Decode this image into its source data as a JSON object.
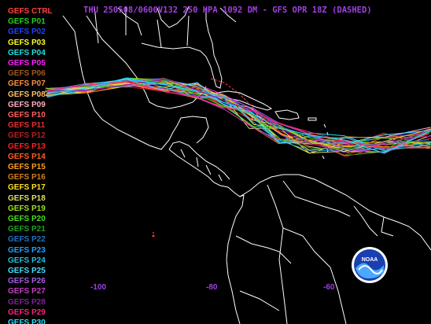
{
  "title": "THU 250508/0600V132  250 HPA 1092 DM - GFS OPR 18Z (DASHED)",
  "title_color": "#a040e0",
  "legend": [
    {
      "label": "GEFS CTRL",
      "color": "#ff4040"
    },
    {
      "label": "GEFS P01",
      "color": "#20d020"
    },
    {
      "label": "GEFS P02",
      "color": "#2040ff"
    },
    {
      "label": "GEFS P03",
      "color": "#ffff20"
    },
    {
      "label": "GEFS P04",
      "color": "#20e0e0"
    },
    {
      "label": "GEFS P05",
      "color": "#ff20ff"
    },
    {
      "label": "GEFS P06",
      "color": "#a05a20"
    },
    {
      "label": "GEFS P07",
      "color": "#ff9040"
    },
    {
      "label": "GEFS P08",
      "color": "#ffc060"
    },
    {
      "label": "GEFS P09",
      "color": "#ffb0c0"
    },
    {
      "label": "GEFS P10",
      "color": "#ff6060"
    },
    {
      "label": "GEFS P11",
      "color": "#e03030"
    },
    {
      "label": "GEFS P12",
      "color": "#b02020"
    },
    {
      "label": "GEFS P13",
      "color": "#ff2020"
    },
    {
      "label": "GEFS P14",
      "color": "#ff6020"
    },
    {
      "label": "GEFS P15",
      "color": "#ffa020"
    },
    {
      "label": "GEFS P16",
      "color": "#d08020"
    },
    {
      "label": "GEFS P17",
      "color": "#ffe020"
    },
    {
      "label": "GEFS P18",
      "color": "#e0e060"
    },
    {
      "label": "GEFS P19",
      "color": "#a0e020"
    },
    {
      "label": "GEFS P20",
      "color": "#40e020"
    },
    {
      "label": "GEFS P21",
      "color": "#20a020"
    },
    {
      "label": "GEFS P22",
      "color": "#2070c0"
    },
    {
      "label": "GEFS P23",
      "color": "#20a0ff"
    },
    {
      "label": "GEFS P24",
      "color": "#20c0e0"
    },
    {
      "label": "GEFS P25",
      "color": "#40e0ff"
    },
    {
      "label": "GEFS P26",
      "color": "#a060e0"
    },
    {
      "label": "GEFS P27",
      "color": "#c040c0"
    },
    {
      "label": "GEFS P28",
      "color": "#8020a0"
    },
    {
      "label": "GEFS P29",
      "color": "#ff2080"
    },
    {
      "label": "GEFS P30",
      "color": "#20e0ff"
    }
  ],
  "longitude_labels": [
    "-100",
    "-80",
    "-60"
  ],
  "logo_text": "NOAA"
}
